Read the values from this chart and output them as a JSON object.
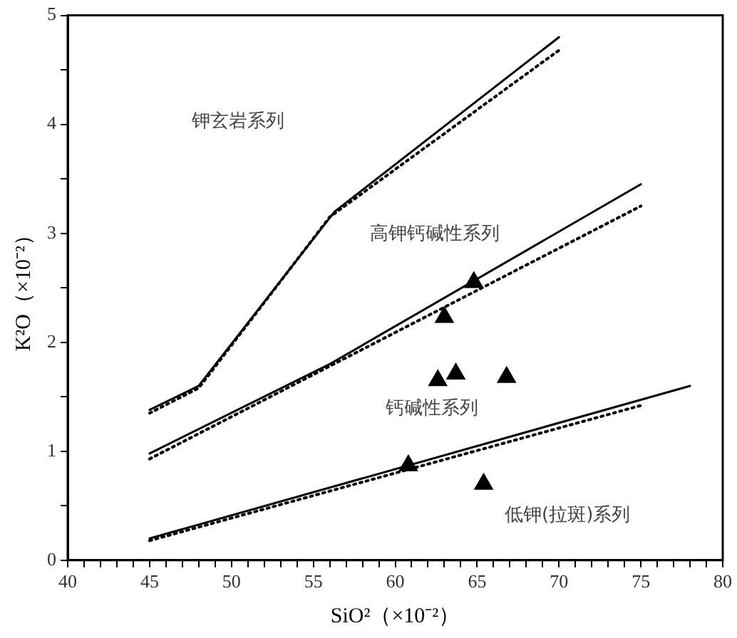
{
  "chart_data": {
    "type": "line",
    "xlabel": "SiO²（×10⁻²）",
    "ylabel": "K²O（×10⁻²）",
    "xlim": [
      40,
      80
    ],
    "ylim": [
      0,
      5
    ],
    "xticks": [
      40,
      {
        "value": 41,
        "label": null
      },
      {
        "value": 42,
        "label": null
      },
      {
        "value": 43,
        "label": null
      },
      {
        "value": 44,
        "label": null
      },
      45,
      {
        "value": 46,
        "label": null
      },
      {
        "value": 47,
        "label": null
      },
      {
        "value": 48,
        "label": null
      },
      {
        "value": 49,
        "label": null
      },
      50,
      {
        "value": 51,
        "label": null
      },
      {
        "value": 52,
        "label": null
      },
      {
        "value": 53,
        "label": null
      },
      {
        "value": 54,
        "label": null
      },
      55,
      {
        "value": 56,
        "label": null
      },
      {
        "value": 57,
        "label": null
      },
      {
        "value": 58,
        "label": null
      },
      {
        "value": 59,
        "label": null
      },
      60,
      {
        "value": 61,
        "label": null
      },
      {
        "value": 62,
        "label": null
      },
      {
        "value": 63,
        "label": null
      },
      {
        "value": 64,
        "label": null
      },
      65,
      {
        "value": 66,
        "label": null
      },
      {
        "value": 67,
        "label": null
      },
      {
        "value": 68,
        "label": null
      },
      {
        "value": 69,
        "label": null
      },
      70,
      {
        "value": 71,
        "label": null
      },
      {
        "value": 72,
        "label": null
      },
      {
        "value": 73,
        "label": null
      },
      {
        "value": 74,
        "label": null
      },
      75,
      {
        "value": 76,
        "label": null
      },
      {
        "value": 77,
        "label": null
      },
      {
        "value": 78,
        "label": null
      },
      {
        "value": 79,
        "label": null
      },
      80
    ],
    "yticks": [
      0,
      {
        "value": 0.5,
        "label": null
      },
      1,
      {
        "value": 1.5,
        "label": null
      },
      2,
      {
        "value": 2.5,
        "label": null
      },
      3,
      {
        "value": 3.5,
        "label": null
      },
      4,
      {
        "value": 4.5,
        "label": null
      },
      5
    ],
    "grid": false,
    "legend": false,
    "series": [
      {
        "color": "#000000",
        "line_style": "solid",
        "marker": "none",
        "x": [
          45,
          48,
          56.3,
          70
        ],
        "values": [
          1.38,
          1.6,
          3.2,
          4.8
        ]
      },
      {
        "color": "#000000",
        "line_style": "dotted",
        "marker": "none",
        "x": [
          45,
          48,
          56,
          70
        ],
        "values": [
          1.35,
          1.58,
          3.15,
          4.68
        ]
      },
      {
        "type": "line",
        "color": "#000000",
        "line_style": "solid",
        "marker": "none",
        "x": [
          45,
          56,
          75
        ],
        "values": [
          0.98,
          1.8,
          3.45
        ]
      },
      {
        "type": "line",
        "color": "#000000",
        "line_style": "dotted",
        "marker": "none",
        "x": [
          45,
          75
        ],
        "values": [
          0.93,
          3.25
        ]
      },
      {
        "type": "line",
        "color": "#000000",
        "line_style": "solid",
        "marker": "none",
        "x": [
          45,
          78
        ],
        "values": [
          0.2,
          1.6
        ]
      },
      {
        "type": "line",
        "color": "#000000",
        "line_style": "dotted",
        "marker": "none",
        "x": [
          45,
          75
        ],
        "values": [
          0.18,
          1.42
        ]
      },
      {
        "type": "scatter",
        "color": "#000000",
        "marker": "triangle",
        "x": [
          64.8,
          63.0,
          62.6,
          63.7,
          66.8,
          60.8,
          65.4
        ],
        "values": [
          2.55,
          2.23,
          1.65,
          1.71,
          1.68,
          0.87,
          0.7
        ]
      }
    ],
    "annotations": [
      "钾玄岩系列",
      "高钾钙碱性系列",
      "钙碱性系列",
      "低钾(拉斑)系列"
    ]
  }
}
